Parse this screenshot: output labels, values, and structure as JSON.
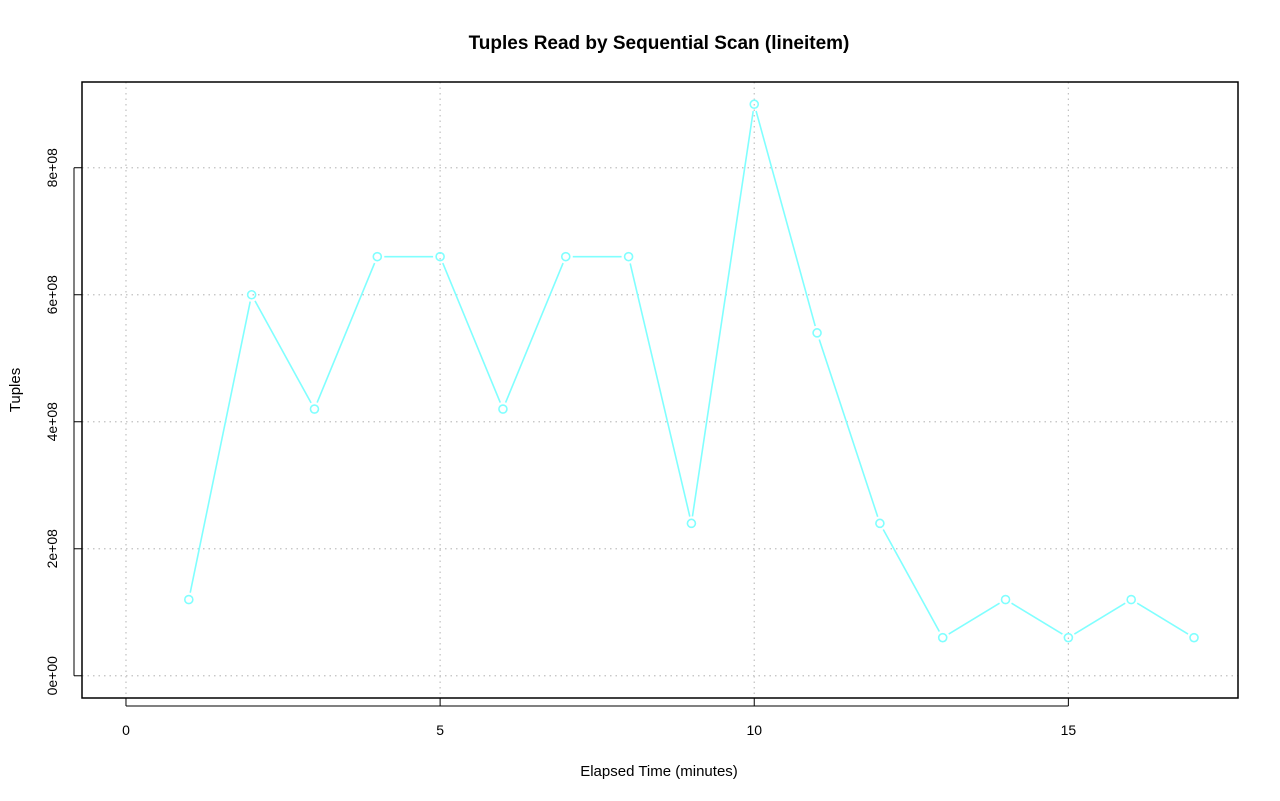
{
  "chart_data": {
    "type": "line",
    "title": "Tuples Read by Sequential Scan (lineitem)",
    "xlabel": "Elapsed Time (minutes)",
    "ylabel": "Tuples",
    "xlim": [
      -0.7,
      17.7
    ],
    "ylim": [
      -35000000,
      935000000
    ],
    "x_ticks": [
      0,
      5,
      10,
      15
    ],
    "x_tick_labels": [
      "0",
      "5",
      "10",
      "15"
    ],
    "y_ticks": [
      0,
      200000000,
      400000000,
      600000000,
      800000000
    ],
    "y_tick_labels": [
      "0e+00",
      "2e+08",
      "4e+08",
      "6e+08",
      "8e+08"
    ],
    "grid": true,
    "series": [
      {
        "color": "#80ffff",
        "x": [
          1,
          2,
          3,
          4,
          5,
          6,
          7,
          8,
          9,
          10,
          11,
          12,
          13,
          14,
          15,
          16,
          17
        ],
        "values": [
          120000000,
          600000000,
          420000000,
          660000000,
          660000000,
          420000000,
          660000000,
          660000000,
          240000000,
          900000000,
          540000000,
          240000000,
          60000000,
          120000000,
          60000000,
          120000000,
          60000000
        ]
      }
    ]
  }
}
